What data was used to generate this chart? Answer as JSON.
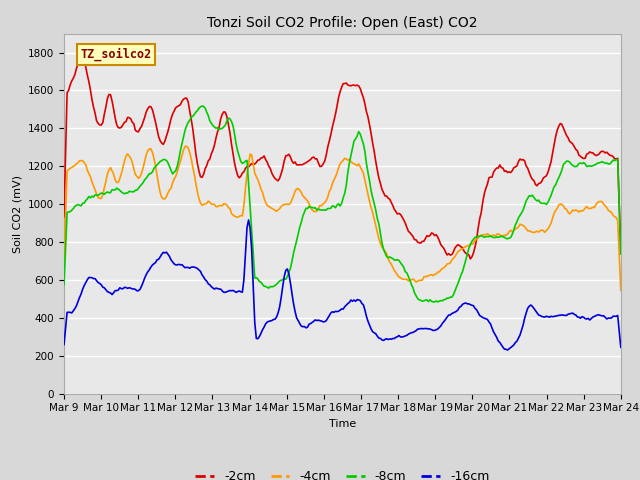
{
  "title": "Tonzi Soil CO2 Profile: Open (East) CO2",
  "xlabel": "Time",
  "ylabel": "Soil CO2 (mV)",
  "legend_label": "TZ_soilco2",
  "ylim": [
    0,
    1900
  ],
  "yticks": [
    0,
    200,
    400,
    600,
    800,
    1000,
    1200,
    1400,
    1600,
    1800
  ],
  "xtick_labels": [
    "Mar 9",
    "Mar 10",
    "Mar 11",
    "Mar 12",
    "Mar 13",
    "Mar 14",
    "Mar 15",
    "Mar 16",
    "Mar 17",
    "Mar 18",
    "Mar 19",
    "Mar 20",
    "Mar 21",
    "Mar 22",
    "Mar 23",
    "Mar 24"
  ],
  "series_colors": {
    "-2cm": "#dd0000",
    "-4cm": "#ff9900",
    "-8cm": "#00cc00",
    "-16cm": "#0000dd"
  },
  "line_width": 1.2,
  "fig_bg": "#d8d8d8",
  "plot_bg": "#e8e8e8",
  "grid_color": "#ffffff",
  "legend_box_facecolor": "#ffffbb",
  "legend_box_edge": "#cc8800",
  "title_fontsize": 10,
  "axis_fontsize": 8,
  "tick_fontsize": 7.5
}
